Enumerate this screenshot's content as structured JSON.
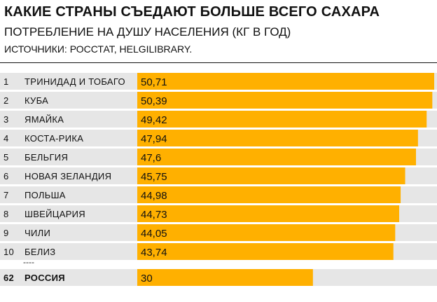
{
  "header": {
    "title": "КАКИЕ СТРАНЫ СЪЕДАЮТ БОЛЬШЕ ВСЕГО САХАРА",
    "subtitle": "ПОТРЕБЛЕНИЕ НА ДУШУ НАСЕЛЕНИЯ (КГ В ГОД)",
    "source": "ИСТОЧНИКИ: РОССТАТ, HELGILIBRARY."
  },
  "colors": {
    "bar": "#ffb000",
    "row_background": "#e6e6e6",
    "text": "#111111"
  },
  "chart_data": {
    "type": "bar",
    "orientation": "horizontal",
    "title": "КАКИЕ СТРАНЫ СЪЕДАЮТ БОЛЬШЕ ВСЕГО САХАРА",
    "subtitle": "ПОТРЕБЛЕНИЕ НА ДУШУ НАСЕЛЕНИЯ (КГ В ГОД)",
    "xlim": [
      0,
      50.71
    ],
    "grid": false,
    "legend": "none",
    "rows": [
      {
        "rank": "1",
        "country": "ТРИНИДАД И ТОБАГО",
        "value": 50.71,
        "label": "50,71"
      },
      {
        "rank": "2",
        "country": "КУБА",
        "value": 50.39,
        "label": "50,39"
      },
      {
        "rank": "3",
        "country": "ЯМАЙКА",
        "value": 49.42,
        "label": "49,42"
      },
      {
        "rank": "4",
        "country": "КОСТА-РИКА",
        "value": 47.94,
        "label": "47,94"
      },
      {
        "rank": "5",
        "country": "БЕЛЬГИЯ",
        "value": 47.6,
        "label": "47,6"
      },
      {
        "rank": "6",
        "country": "НОВАЯ ЗЕЛАНДИЯ",
        "value": 45.75,
        "label": "45,75"
      },
      {
        "rank": "7",
        "country": "ПОЛЬША",
        "value": 44.98,
        "label": "44,98"
      },
      {
        "rank": "8",
        "country": "ШВЕЙЦАРИЯ",
        "value": 44.73,
        "label": "44,73"
      },
      {
        "rank": "9",
        "country": "ЧИЛИ",
        "value": 44.05,
        "label": "44,05"
      },
      {
        "rank": "10",
        "country": "БЕЛИЗ",
        "value": 43.74,
        "label": "43,74"
      }
    ],
    "separator": "----",
    "highlight": {
      "rank": "62",
      "country": "РОССИЯ",
      "value": 30,
      "label": "30"
    }
  }
}
